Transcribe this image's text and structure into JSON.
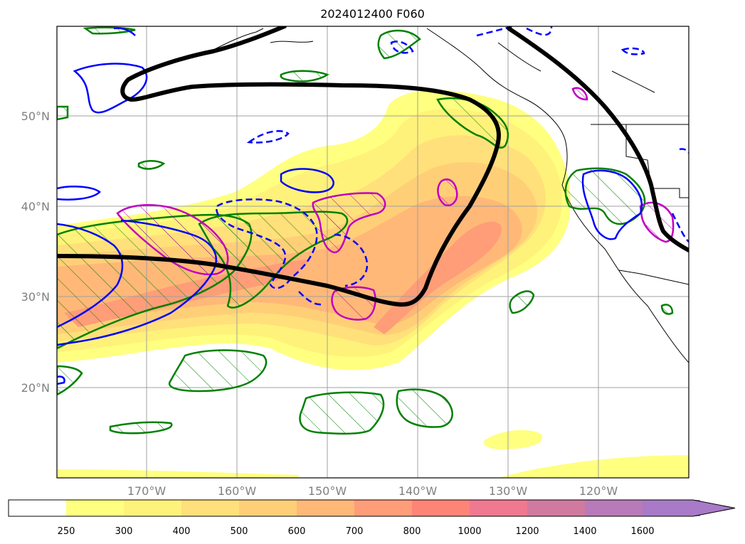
{
  "title": "2024012400 F060",
  "map": {
    "latitude_labels": [
      "50°N",
      "40°N",
      "30°N",
      "20°N"
    ],
    "longitude_labels": [
      "170°W",
      "160°W",
      "150°W",
      "140°W",
      "130°W",
      "120°W"
    ],
    "gridlines": true
  },
  "colorbar": {
    "tick_labels": [
      "250",
      "300",
      "400",
      "500",
      "600",
      "700",
      "800",
      "1000",
      "1200",
      "1400",
      "1600"
    ],
    "colors": [
      "#ffffff",
      "#ffff80",
      "#fff27a",
      "#ffe07a",
      "#ffcf78",
      "#ffb878",
      "#ff9d78",
      "#ff8478",
      "#f07890",
      "#d07aa0",
      "#b87ab8",
      "#a87ac8"
    ],
    "extend": "max"
  },
  "overlays": {
    "thick_contour_color": "#000000",
    "solid_contour_color": "#0000ff",
    "dashed_contour_color": "#0000ff",
    "hatched_region_color": "#008000",
    "magenta_contour_color": "#c000c0"
  }
}
